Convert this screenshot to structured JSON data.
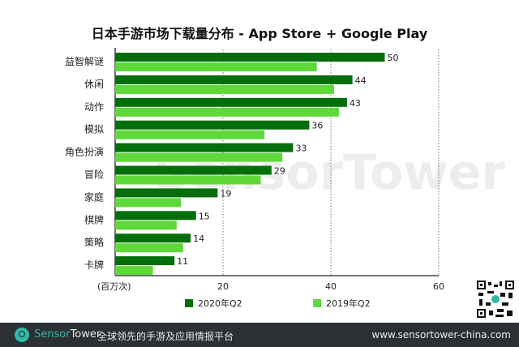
{
  "chart_data": {
    "type": "bar",
    "orientation": "horizontal",
    "title": "日本手游市场下载量分布 - App Store + Google Play",
    "xlabel": "(百万次)",
    "categories": [
      "益智解谜",
      "休闲",
      "动作",
      "模拟",
      "角色扮演",
      "冒险",
      "家庭",
      "棋牌",
      "策略",
      "卡牌"
    ],
    "series": [
      {
        "name": "2020年Q2",
        "color": "#046f0a",
        "values": [
          50,
          44,
          43,
          36,
          33,
          29,
          19,
          15,
          14,
          11
        ],
        "labels_shown": true
      },
      {
        "name": "2019年Q2",
        "color": "#5fd83a",
        "values": [
          37.4,
          40.6,
          41.5,
          27.7,
          31.0,
          27.0,
          12.2,
          11.4,
          12.6,
          7.0
        ],
        "labels_shown": false
      }
    ],
    "xlim": [
      0,
      60
    ],
    "xticks": [
      20,
      40,
      60
    ],
    "grid": "vertical dotted",
    "legend": "bottom"
  },
  "watermark": "SensorTower",
  "footer": {
    "brand_a": "Sensor",
    "brand_b": "Tower",
    "slogan": "全球领先的手游及应用情报平台",
    "url": "www.sensortower-china.com"
  }
}
